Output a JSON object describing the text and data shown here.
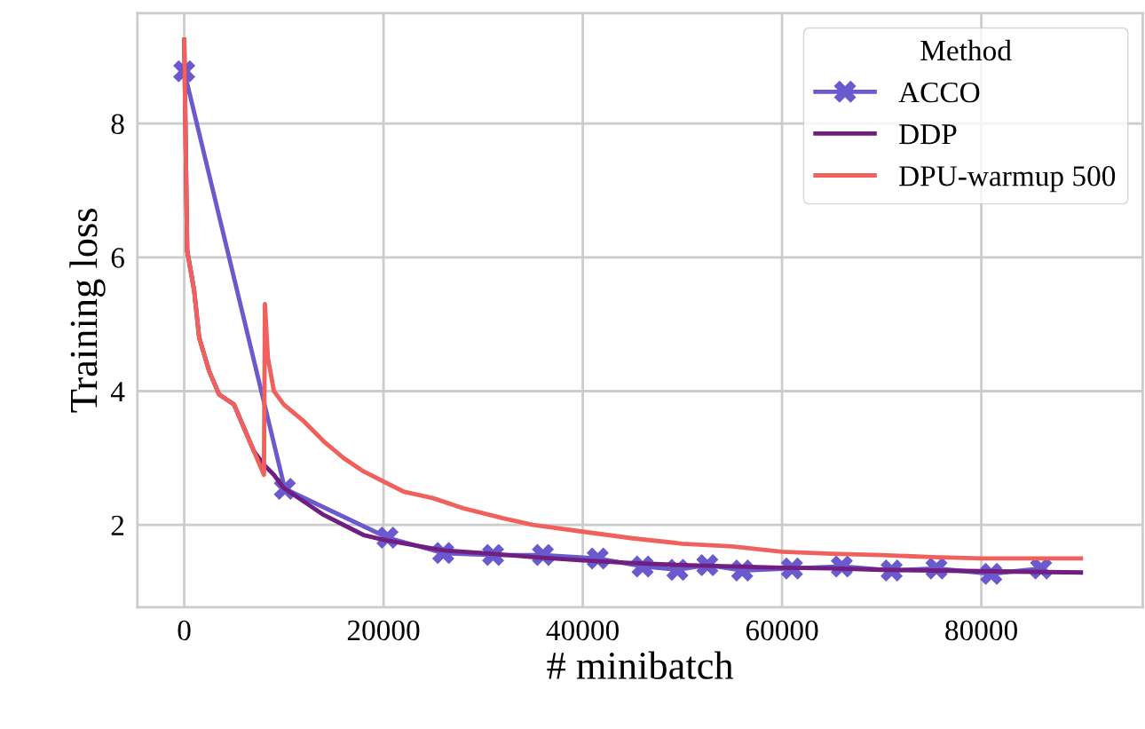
{
  "chart_data": {
    "type": "line",
    "xlabel": "# minibatch",
    "ylabel": "Training loss",
    "legend_title": "Method",
    "legend": "top right",
    "grid": true,
    "xlim": [
      -4700,
      96200
    ],
    "ylim": [
      0.77,
      9.65
    ],
    "xticks": [
      0,
      20000,
      40000,
      60000,
      80000
    ],
    "yticks": [
      2,
      4,
      6,
      8
    ],
    "series": [
      {
        "name": "ACCO",
        "color": "#6a5acd",
        "marker": "cross",
        "x": [
          0,
          10100,
          20400,
          26000,
          31000,
          36000,
          41500,
          46000,
          49500,
          52500,
          56000,
          61000,
          66000,
          71000,
          75500,
          81000,
          86000
        ],
        "values": [
          8.78,
          2.54,
          1.81,
          1.58,
          1.55,
          1.55,
          1.5,
          1.38,
          1.33,
          1.4,
          1.32,
          1.35,
          1.38,
          1.32,
          1.35,
          1.27,
          1.35
        ]
      },
      {
        "name": "DDP",
        "color": "#701f81",
        "x": [
          0,
          300,
          1000,
          1500,
          2500,
          3500,
          5000,
          6000,
          7000,
          8000,
          9000,
          10000,
          12000,
          14000,
          16000,
          18000,
          20000,
          23000,
          26000,
          30000,
          35000,
          40000,
          45000,
          50000,
          55000,
          60000,
          65000,
          70000,
          75000,
          80000,
          85000,
          90000
        ],
        "values": [
          9.25,
          6.1,
          5.5,
          4.8,
          4.3,
          3.95,
          3.8,
          3.45,
          3.1,
          2.9,
          2.75,
          2.55,
          2.35,
          2.15,
          2.0,
          1.85,
          1.78,
          1.7,
          1.62,
          1.58,
          1.52,
          1.47,
          1.43,
          1.4,
          1.38,
          1.36,
          1.35,
          1.33,
          1.32,
          1.31,
          1.3,
          1.29
        ]
      },
      {
        "name": "DPU-warmup 500",
        "color": "#f0605d",
        "x": [
          0,
          300,
          1000,
          1500,
          2500,
          3500,
          5000,
          6000,
          7000,
          8000,
          8100,
          8400,
          9000,
          10000,
          12000,
          14000,
          16000,
          18000,
          20000,
          22000,
          25000,
          28000,
          32000,
          35000,
          40000,
          45000,
          50000,
          55000,
          60000,
          65000,
          70000,
          75000,
          80000,
          85000,
          90000
        ],
        "values": [
          9.25,
          6.1,
          5.5,
          4.8,
          4.3,
          3.95,
          3.8,
          3.45,
          3.1,
          2.75,
          5.3,
          4.5,
          4.0,
          3.8,
          3.55,
          3.25,
          3.0,
          2.8,
          2.65,
          2.5,
          2.4,
          2.25,
          2.1,
          2.0,
          1.9,
          1.8,
          1.72,
          1.68,
          1.6,
          1.57,
          1.55,
          1.52,
          1.5,
          1.5,
          1.5
        ]
      }
    ]
  }
}
